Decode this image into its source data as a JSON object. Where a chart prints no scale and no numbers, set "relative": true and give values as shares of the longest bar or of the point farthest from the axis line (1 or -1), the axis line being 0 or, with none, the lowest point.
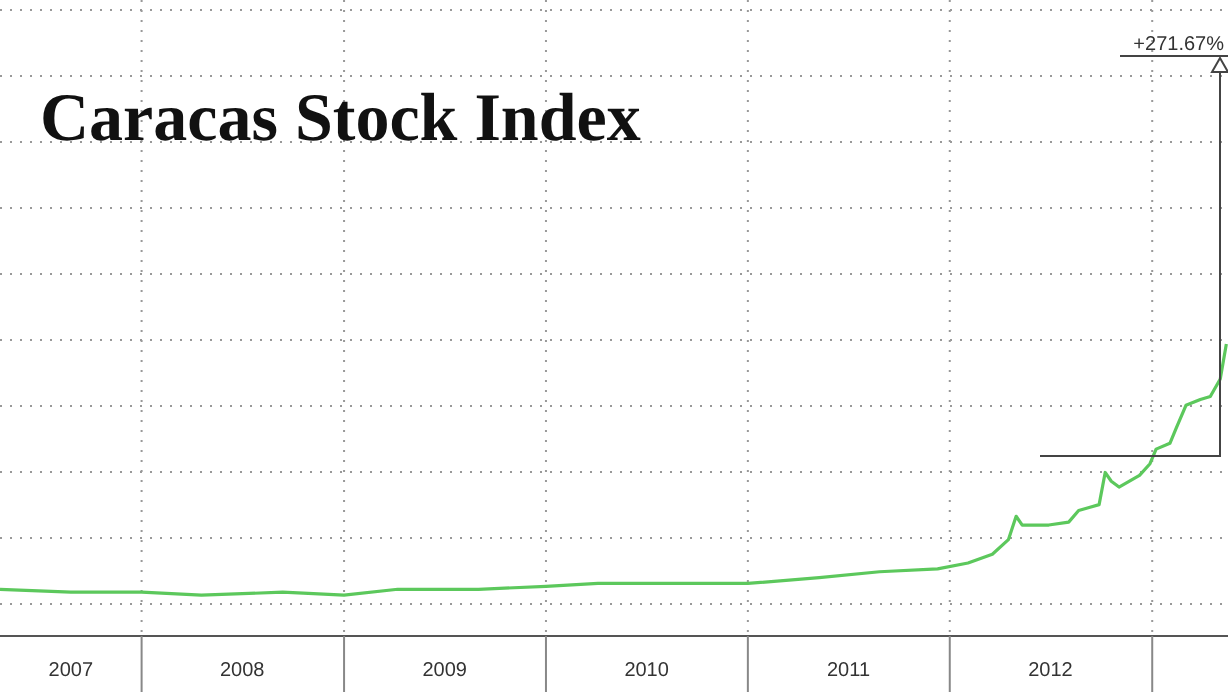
{
  "chart_data": {
    "type": "line",
    "title": "Caracas Stock Index",
    "relative": true,
    "grid": true,
    "marker": "none",
    "line_style": "solid",
    "xlim": [
      "2007-04-20",
      "2013-05-18"
    ],
    "xticks": [
      {
        "value": "2008-01-01",
        "label": null
      },
      {
        "value": "2009-01-01",
        "label": null
      },
      {
        "value": "2010-01-01",
        "label": null
      },
      {
        "value": "2011-01-01",
        "label": null
      },
      {
        "value": "2012-01-01",
        "label": null
      },
      {
        "value": "2013-01-01",
        "label": null
      },
      {
        "value": "2007-08-26",
        "label": "2007"
      },
      {
        "value": "2008-07-01",
        "label": "2008"
      },
      {
        "value": "2009-07-02",
        "label": "2009"
      },
      {
        "value": "2010-07-02",
        "label": "2010"
      },
      {
        "value": "2011-07-02",
        "label": "2011"
      },
      {
        "value": "2012-07-01",
        "label": "2012"
      }
    ],
    "annotations": [
      "+271.67%"
    ],
    "series": [
      {
        "color": "#5cc85c",
        "x": [
          "2007-04-20",
          "2007-08-26",
          "2008-01-01",
          "2008-04-18",
          "2008-09-12",
          "2009-01-01",
          "2009-04-08",
          "2009-09-01",
          "2010-01-01",
          "2010-04-05",
          "2010-08-30",
          "2011-01-01",
          "2011-05-10",
          "2011-08-27",
          "2011-12-10",
          "2012-02-03",
          "2012-03-18",
          "2012-04-16",
          "2012-04-30",
          "2012-05-11",
          "2012-05-26",
          "2012-06-28",
          "2012-08-03",
          "2012-08-21",
          "2012-09-09",
          "2012-09-27",
          "2012-10-08",
          "2012-10-19",
          "2012-11-02",
          "2012-12-09",
          "2012-12-28",
          "2013-01-08",
          "2013-02-02",
          "2013-02-13",
          "2013-03-03",
          "2013-03-29",
          "2013-04-16",
          "2013-05-04",
          "2013-05-15"
        ],
        "values": [
          0.16,
          0.15,
          0.15,
          0.14,
          0.15,
          0.14,
          0.16,
          0.16,
          0.17,
          0.18,
          0.18,
          0.18,
          0.2,
          0.22,
          0.23,
          0.25,
          0.28,
          0.33,
          0.41,
          0.38,
          0.38,
          0.38,
          0.39,
          0.43,
          0.44,
          0.45,
          0.56,
          0.53,
          0.51,
          0.55,
          0.59,
          0.64,
          0.66,
          0.71,
          0.79,
          0.81,
          0.82,
          0.88,
          1
        ]
      }
    ]
  }
}
